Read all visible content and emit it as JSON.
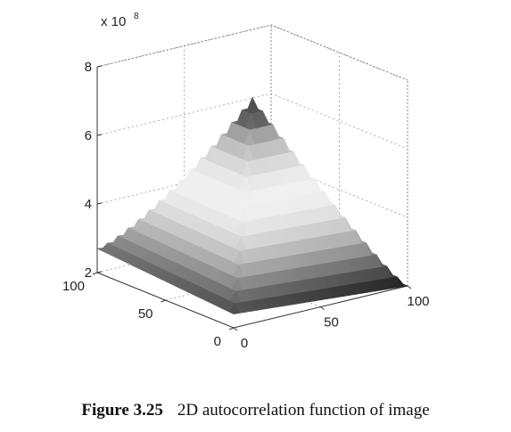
{
  "chart_data": {
    "type": "surface3d",
    "title": "",
    "zlabel_multiplier": "x 10",
    "zlabel_exponent": "8",
    "x_ticks": [
      "0",
      "50",
      "100"
    ],
    "y_ticks": [
      "0",
      "50",
      "100"
    ],
    "z_ticks": [
      "2",
      "4",
      "6",
      "8"
    ],
    "xlim": [
      0,
      100
    ],
    "ylim": [
      0,
      100
    ],
    "zlim": [
      2,
      8
    ],
    "z_scale": 100000000,
    "grid": true,
    "colormap": "gray",
    "surface_description": "pyramid-shaped autocorrelation peaking at center",
    "corner_values": {
      "x0_y0": 2.4,
      "x100_y0": 2.0,
      "x0_y100": 2.7,
      "x100_y100": 2.0
    },
    "peak": {
      "x": 50,
      "y": 50,
      "z": 7.3
    }
  },
  "caption": {
    "number": "Figure 3.25",
    "text": "2D autocorrelation function of image"
  }
}
